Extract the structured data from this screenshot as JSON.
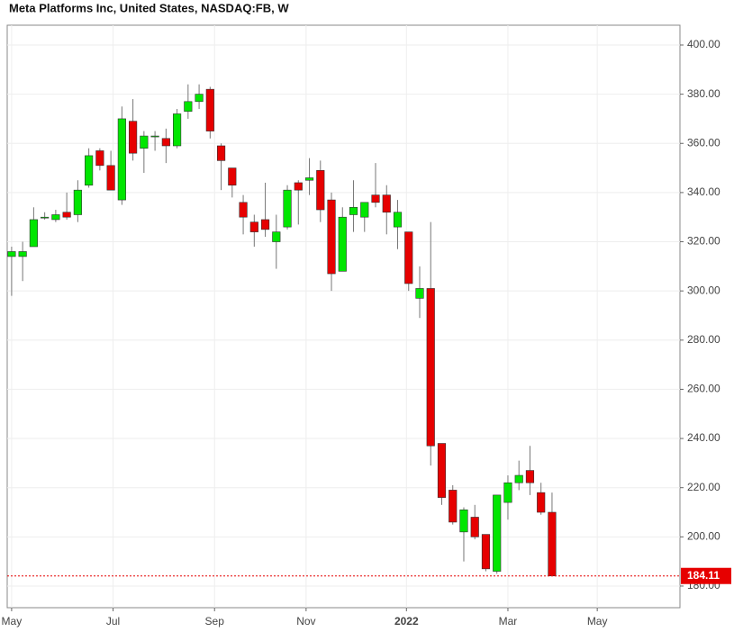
{
  "chart_data": {
    "type": "candlestick",
    "title": "Meta Platforms Inc, United States, NASDAQ:FB, W",
    "categories": [
      null,
      null,
      null,
      null,
      null,
      null,
      null,
      null,
      null,
      null,
      null,
      null,
      null,
      null,
      null,
      null,
      null,
      null,
      null,
      null,
      null,
      null,
      null,
      null,
      null,
      null,
      null,
      null,
      null,
      null,
      null,
      null,
      null,
      null,
      null,
      null,
      null,
      null,
      null,
      null,
      null,
      null,
      null,
      null,
      null,
      null,
      null,
      null,
      null,
      null
    ],
    "open": [
      314,
      314,
      318,
      330,
      329,
      332,
      331,
      343,
      357,
      351,
      337,
      369,
      358,
      363,
      362,
      359,
      373,
      377,
      382,
      359,
      350,
      336,
      328,
      329,
      320,
      326,
      344,
      345,
      349,
      337,
      308,
      331,
      330,
      339,
      339,
      326,
      324,
      297,
      301,
      238,
      219,
      202,
      208,
      201,
      186,
      214,
      222,
      227,
      218,
      210
    ],
    "high": [
      318,
      320,
      334,
      332,
      333,
      340,
      345,
      358,
      358,
      357,
      375,
      378,
      365,
      365,
      366,
      374,
      384,
      384,
      383,
      360,
      350,
      339,
      331,
      344,
      331,
      343,
      345,
      354,
      353,
      340,
      334,
      345,
      336,
      352,
      343,
      337,
      324,
      310,
      328,
      238,
      221,
      212,
      213,
      201,
      217,
      225,
      231,
      237,
      222,
      218
    ],
    "low": [
      298,
      304,
      318,
      329,
      328,
      329,
      328,
      342,
      349,
      341,
      335,
      353,
      348,
      357,
      352,
      358,
      370,
      374,
      362,
      341,
      338,
      323,
      318,
      322,
      309,
      325,
      327,
      339,
      328,
      300,
      308,
      324,
      324,
      334,
      323,
      317,
      300,
      289,
      229,
      213,
      205,
      190,
      199,
      186,
      185,
      207,
      219,
      217,
      209,
      184.11
    ],
    "close": [
      316,
      316,
      329,
      330,
      331,
      330,
      341,
      355,
      351,
      341,
      370,
      356,
      363,
      363,
      359,
      372,
      377,
      380,
      365,
      353,
      343,
      330,
      324,
      325,
      324,
      341,
      341,
      346,
      333,
      307,
      330,
      334,
      336,
      336,
      332,
      332,
      303,
      301,
      237,
      216,
      206,
      211,
      200,
      187,
      217,
      222,
      225,
      222,
      210,
      184.11
    ],
    "up_color": "#00e600",
    "down_color": "#e60000",
    "last_value": 184.11,
    "ylim": [
      171.2,
      408.05
    ],
    "yticks": [
      {
        "value": 180,
        "label": "180.00"
      },
      {
        "value": 200,
        "label": "200.00"
      },
      {
        "value": 220,
        "label": "220.00"
      },
      {
        "value": 240,
        "label": "240.00"
      },
      {
        "value": 260,
        "label": "260.00"
      },
      {
        "value": 280,
        "label": "280.00"
      },
      {
        "value": 300,
        "label": "300.00"
      },
      {
        "value": 320,
        "label": "320.00"
      },
      {
        "value": 340,
        "label": "340.00"
      },
      {
        "value": 360,
        "label": "360.00"
      },
      {
        "value": 380,
        "label": "380.00"
      },
      {
        "value": 400,
        "label": "400.00"
      }
    ],
    "xlim": [
      -0.4,
      60.6
    ],
    "xticks": [
      {
        "value": 0,
        "label": "May"
      },
      {
        "value": 9.2,
        "label": "Jul"
      },
      {
        "value": 18.4,
        "label": "Sep"
      },
      {
        "value": 26.7,
        "label": "Nov"
      },
      {
        "value": 35.8,
        "label": "2022"
      },
      {
        "value": 45,
        "label": "Mar"
      },
      {
        "value": 53.1,
        "label": "May"
      }
    ],
    "grid": true
  }
}
